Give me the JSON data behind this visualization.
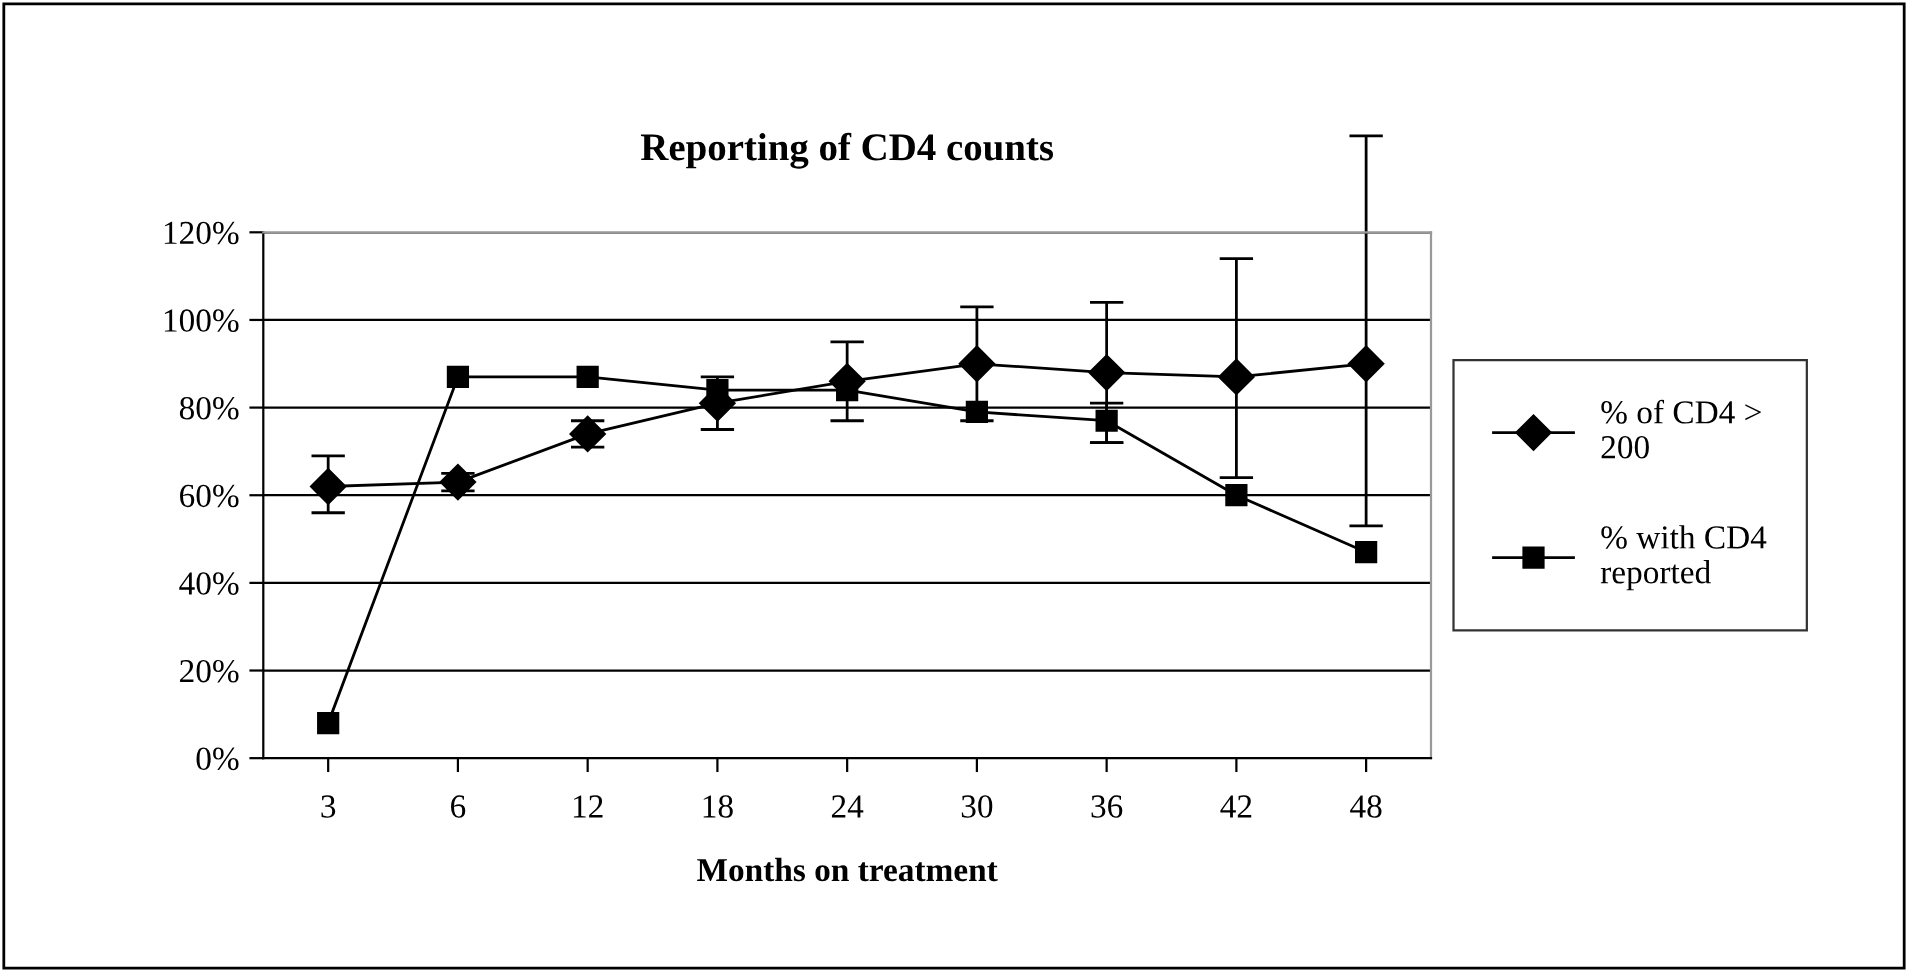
{
  "chart_data": {
    "type": "line",
    "title": "Reporting of CD4 counts",
    "xlabel": "Months on treatment",
    "categories": [
      "3",
      "6",
      "12",
      "18",
      "24",
      "30",
      "36",
      "42",
      "48"
    ],
    "series": [
      {
        "name": "% of CD4 > 200",
        "color": "#000000",
        "marker": "diamond",
        "values": [
          62,
          63,
          74,
          81,
          86,
          90,
          88,
          87,
          90
        ],
        "errors": [
          [
            56,
            69
          ],
          [
            61,
            65
          ],
          [
            71,
            77
          ],
          [
            75,
            87
          ],
          [
            77,
            95
          ],
          [
            77,
            103
          ],
          [
            72,
            104
          ],
          [
            64,
            114
          ],
          [
            53,
            142
          ]
        ]
      },
      {
        "name": "% with CD4 reported",
        "color": "#000000",
        "marker": "square",
        "values": [
          8,
          87,
          87,
          84,
          84,
          79,
          77,
          60,
          47
        ],
        "errors": [
          null,
          null,
          null,
          null,
          null,
          null,
          [
            72,
            81
          ],
          null,
          null
        ]
      }
    ],
    "ylim": [
      0,
      120
    ],
    "yticks": [
      {
        "value": 0,
        "label": "0%"
      },
      {
        "value": 20,
        "label": "20%"
      },
      {
        "value": 40,
        "label": "40%"
      },
      {
        "value": 60,
        "label": "60%"
      },
      {
        "value": 80,
        "label": "80%"
      },
      {
        "value": 100,
        "label": "100%"
      },
      {
        "value": 120,
        "label": "120%"
      }
    ],
    "grid": "y",
    "legend": "right",
    "line_style": "solid"
  }
}
